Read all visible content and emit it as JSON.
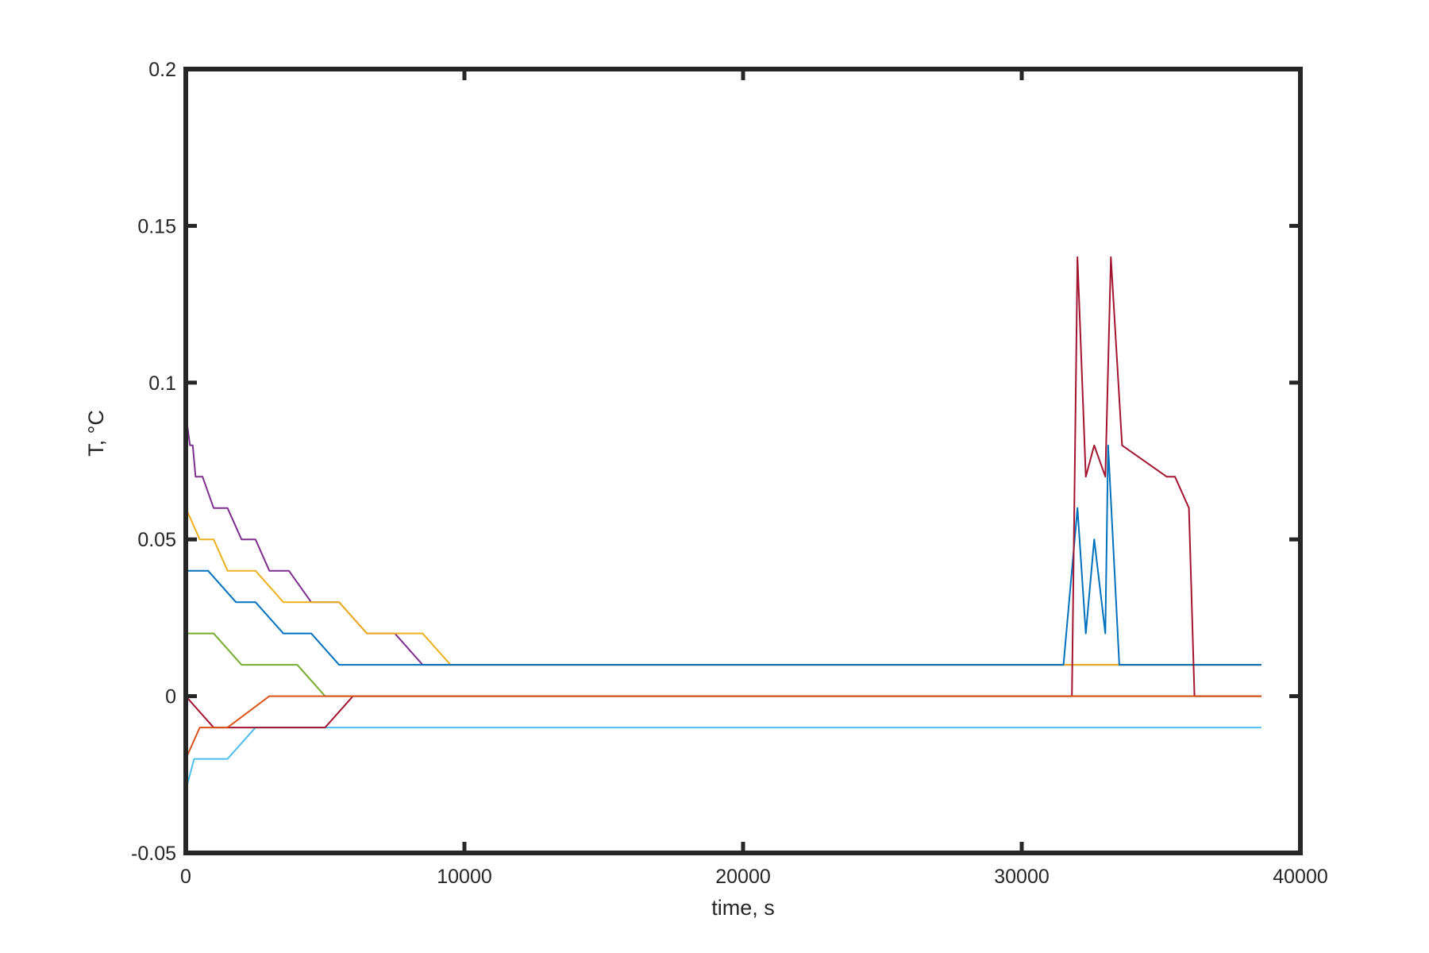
{
  "chart_data": {
    "type": "line",
    "title": "",
    "xlabel": "time, s",
    "ylabel": "T, °C",
    "xlim": [
      0,
      40000
    ],
    "ylim": [
      -0.05,
      0.2
    ],
    "x_ticks": [
      0,
      10000,
      20000,
      30000,
      40000
    ],
    "x_tick_labels": [
      "0",
      "10000",
      "20000",
      "30000",
      "40000"
    ],
    "y_ticks": [
      -0.05,
      0,
      0.05,
      0.1,
      0.15,
      0.2
    ],
    "y_tick_labels": [
      "-0.05",
      "0",
      "0.05",
      "0.1",
      "0.15",
      "0.2"
    ],
    "grid": false,
    "legend": "none",
    "colors": [
      "#0072BD",
      "#D95319",
      "#EDB120",
      "#7E2F8E",
      "#77AC30",
      "#4DBEEE",
      "#A2142F"
    ],
    "series": [
      {
        "color": "#7E2F8E",
        "x": [
          0,
          150,
          250,
          350,
          600,
          1000,
          1500,
          2000,
          2500,
          3000,
          3700,
          4500,
          5500,
          6500,
          7500,
          8500,
          9500,
          12000,
          16000,
          20000,
          25000,
          30000,
          34000,
          38600
        ],
        "y": [
          0.09,
          0.08,
          0.08,
          0.07,
          0.07,
          0.06,
          0.06,
          0.05,
          0.05,
          0.04,
          0.04,
          0.03,
          0.03,
          0.02,
          0.02,
          0.01,
          0.01,
          0.01,
          0.01,
          0.01,
          0.01,
          0.01,
          0.01,
          0.01
        ]
      },
      {
        "color": "#EDB120",
        "x": [
          0,
          500,
          1000,
          1500,
          2500,
          3500,
          4500,
          5500,
          6500,
          7500,
          8500,
          9500,
          12000,
          16000,
          20000,
          25000,
          30000,
          34000,
          38600
        ],
        "y": [
          0.06,
          0.05,
          0.05,
          0.04,
          0.04,
          0.03,
          0.03,
          0.03,
          0.02,
          0.02,
          0.02,
          0.01,
          0.01,
          0.01,
          0.01,
          0.01,
          0.01,
          0.01,
          0.01
        ]
      },
      {
        "color": "#0072BD",
        "x": [
          0,
          800,
          1800,
          2500,
          3500,
          4500,
          5500,
          6500,
          7500,
          9000,
          12000,
          16000,
          20000,
          25000,
          31500,
          32000,
          32300,
          32600,
          33000,
          33100,
          33500,
          35000,
          38600
        ],
        "y": [
          0.04,
          0.04,
          0.03,
          0.03,
          0.02,
          0.02,
          0.01,
          0.01,
          0.01,
          0.01,
          0.01,
          0.01,
          0.01,
          0.01,
          0.01,
          0.06,
          0.02,
          0.05,
          0.02,
          0.08,
          0.01,
          0.01,
          0.01
        ]
      },
      {
        "color": "#4DBEEE",
        "x": [
          0,
          300,
          700,
          1500,
          2500,
          4000,
          6000,
          9000,
          12000,
          16000,
          20000,
          25000,
          30000,
          34000,
          38600
        ],
        "y": [
          -0.03,
          -0.02,
          -0.02,
          -0.02,
          -0.01,
          -0.01,
          -0.01,
          -0.01,
          -0.01,
          -0.01,
          -0.01,
          -0.01,
          -0.01,
          -0.01,
          -0.01
        ]
      },
      {
        "color": "#77AC30",
        "x": [
          0,
          1000,
          2000,
          3000,
          4000,
          5000,
          6000,
          8000,
          9000,
          12000,
          16000,
          20000,
          25000,
          30000,
          34000,
          38600
        ],
        "y": [
          0.02,
          0.02,
          0.01,
          0.01,
          0.01,
          0.0,
          0.0,
          0.0,
          0.0,
          0.0,
          0.0,
          0.0,
          0.0,
          0.0,
          0.0,
          0.0
        ]
      },
      {
        "color": "#A2142F",
        "x": [
          0,
          1000,
          2000,
          3000,
          4000,
          5000,
          6000,
          9000,
          12000,
          16000,
          20000,
          25000,
          30000,
          31800,
          32000,
          32300,
          32600,
          33000,
          33200,
          33600,
          35200,
          35500,
          36000,
          36100,
          36200,
          37000,
          38600
        ],
        "y": [
          0.0,
          -0.01,
          -0.01,
          -0.01,
          -0.01,
          -0.01,
          0.0,
          0.0,
          0.0,
          0.0,
          0.0,
          0.0,
          0.0,
          0.0,
          0.14,
          0.07,
          0.08,
          0.07,
          0.14,
          0.08,
          0.07,
          0.07,
          0.06,
          0.03,
          0.0,
          0.0,
          0.0
        ]
      },
      {
        "color": "#D95319",
        "x": [
          0,
          500,
          1500,
          3000,
          6000,
          10000,
          16000,
          22000,
          30000,
          38600
        ],
        "y": [
          -0.02,
          -0.01,
          -0.01,
          0.0,
          0.0,
          0.0,
          0.0,
          0.0,
          0.0,
          0.0
        ]
      }
    ]
  }
}
